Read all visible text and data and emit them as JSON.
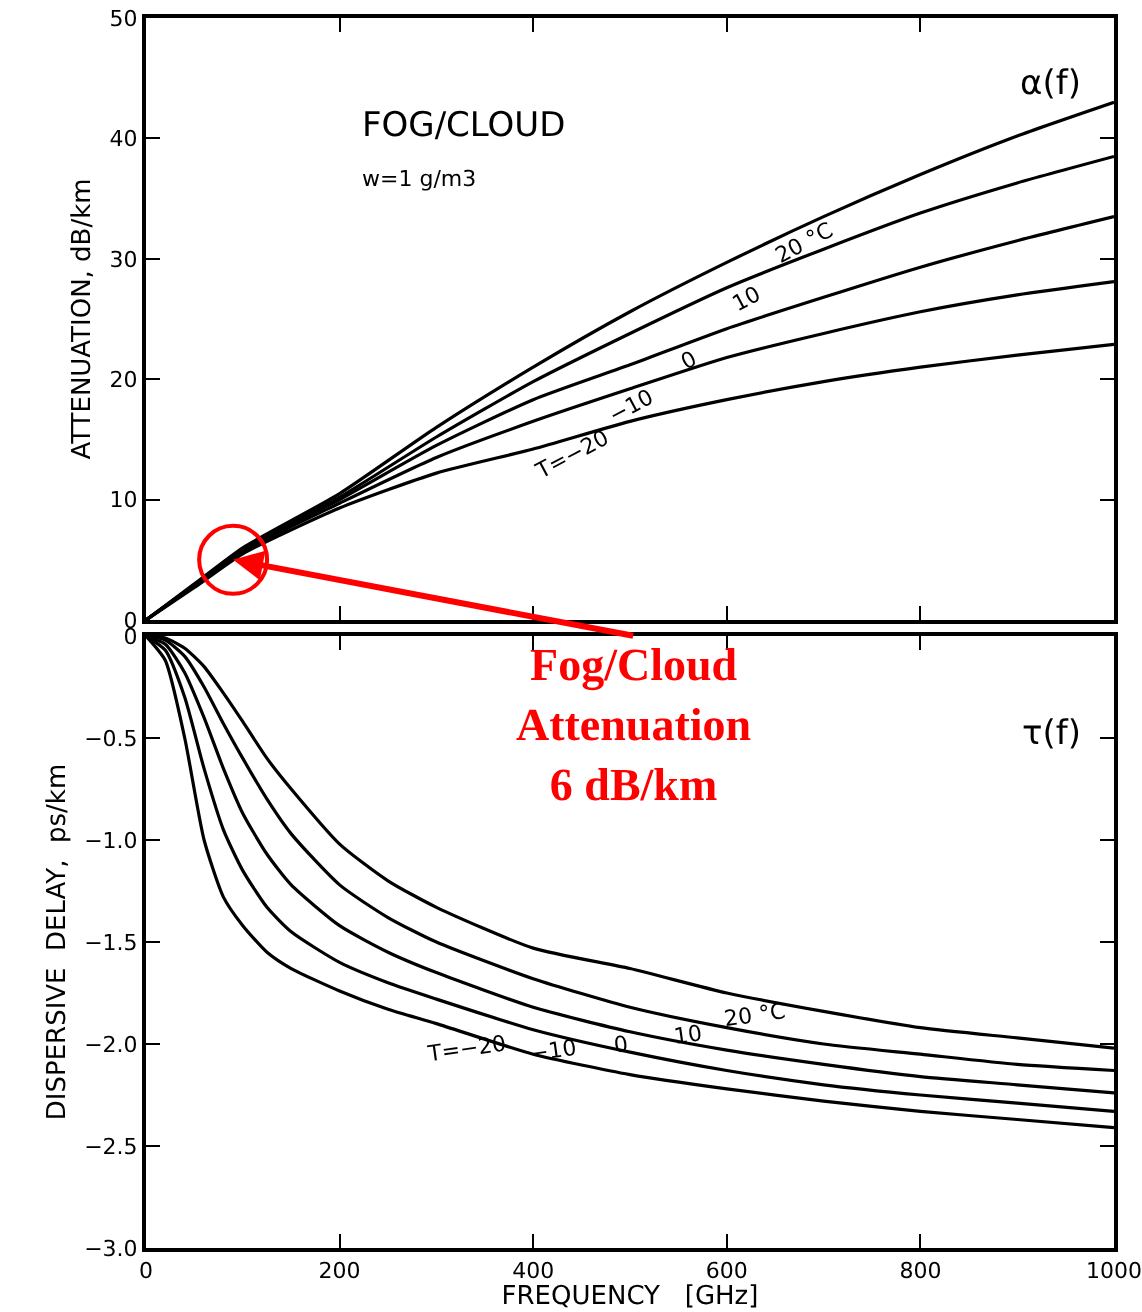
{
  "chart_data": [
    {
      "type": "line",
      "ylabel": "ATTENUATION, dB/km",
      "x": [
        0,
        50,
        100,
        200,
        300,
        400,
        500,
        600,
        700,
        800,
        900,
        1000
      ],
      "series": [
        {
          "name": "T=−20",
          "color": "#000000",
          "values": [
            0,
            2.7,
            5.5,
            9.3,
            12.2,
            14.2,
            16.5,
            18.3,
            19.8,
            21,
            22,
            22.9
          ]
        },
        {
          "name": "−10",
          "color": "#000000",
          "values": [
            0,
            2.8,
            5.7,
            9.7,
            13.5,
            16.5,
            19.2,
            21.8,
            23.8,
            25.6,
            27,
            28.1
          ]
        },
        {
          "name": "0",
          "color": "#000000",
          "values": [
            0,
            2.9,
            5.8,
            10,
            14.5,
            18.3,
            21.2,
            24.2,
            26.8,
            29.3,
            31.5,
            33.5
          ]
        },
        {
          "name": "10",
          "color": "#000000",
          "values": [
            0,
            2.9,
            5.9,
            10.2,
            15.2,
            19.8,
            23.8,
            27.6,
            30.8,
            33.8,
            36.3,
            38.5
          ]
        },
        {
          "name": "20 °C",
          "color": "#000000",
          "values": [
            0,
            3,
            6,
            10.5,
            16,
            21,
            25.6,
            29.7,
            33.5,
            37,
            40.2,
            43
          ]
        }
      ],
      "xlim": [
        0,
        1000
      ],
      "xticks": [
        0,
        200,
        400,
        600,
        800,
        1000
      ],
      "ylim": [
        0,
        50
      ],
      "yticks": [
        0,
        10,
        20,
        30,
        40,
        50
      ],
      "tick_labels": "y",
      "grid": false,
      "legend": false,
      "annotations": [
        "FOG/CLOUD",
        "w=1 g/m3",
        "α(f)",
        {
          "text": "Fog/Cloud\nAttenuation\n6 dB/km",
          "x": 90,
          "y": 5
        }
      ]
    },
    {
      "type": "line",
      "xlabel": "FREQUENCY   [GHz]",
      "ylabel": "DISPERSIVE  DELAY,  ps/km",
      "x": [
        0,
        20,
        40,
        60,
        80,
        100,
        125,
        150,
        200,
        250,
        300,
        400,
        500,
        600,
        700,
        800,
        900,
        1000
      ],
      "series": [
        {
          "name": "T=−20",
          "color": "#000000",
          "values": [
            0,
            -0.12,
            -0.5,
            -1.0,
            -1.28,
            -1.42,
            -1.55,
            -1.63,
            -1.74,
            -1.83,
            -1.9,
            -2.05,
            -2.15,
            -2.22,
            -2.28,
            -2.33,
            -2.37,
            -2.41
          ]
        },
        {
          "name": "−10",
          "color": "#000000",
          "values": [
            0,
            -0.07,
            -0.3,
            -0.65,
            -0.95,
            -1.15,
            -1.33,
            -1.45,
            -1.6,
            -1.7,
            -1.78,
            -1.93,
            -2.04,
            -2.13,
            -2.2,
            -2.25,
            -2.29,
            -2.33
          ]
        },
        {
          "name": "0",
          "color": "#000000",
          "values": [
            0,
            -0.04,
            -0.18,
            -0.4,
            -0.65,
            -0.87,
            -1.07,
            -1.22,
            -1.42,
            -1.55,
            -1.65,
            -1.82,
            -1.94,
            -2.03,
            -2.1,
            -2.16,
            -2.2,
            -2.24
          ]
        },
        {
          "name": "10",
          "color": "#000000",
          "values": [
            0,
            -0.02,
            -0.1,
            -0.25,
            -0.43,
            -0.6,
            -0.8,
            -0.97,
            -1.22,
            -1.38,
            -1.5,
            -1.68,
            -1.82,
            -1.92,
            -2.0,
            -2.05,
            -2.1,
            -2.13
          ]
        },
        {
          "name": "20 °C",
          "color": "#000000",
          "values": [
            0,
            -0.01,
            -0.06,
            -0.15,
            -0.28,
            -0.42,
            -0.6,
            -0.75,
            -1.02,
            -1.2,
            -1.33,
            -1.53,
            -1.63,
            -1.75,
            -1.84,
            -1.92,
            -1.97,
            -2.02
          ]
        }
      ],
      "xlim": [
        0,
        1000
      ],
      "xticks": [
        0,
        200,
        400,
        600,
        800,
        1000
      ],
      "ylim": [
        -3,
        0
      ],
      "yticks": [
        0,
        {
          "value": -0.5,
          "label": "−0.5"
        },
        {
          "value": -1,
          "label": "−1.0"
        },
        {
          "value": -1.5,
          "label": "−1.5"
        },
        {
          "value": -2,
          "label": "−2.0"
        },
        {
          "value": -2.5,
          "label": "−2.5"
        },
        {
          "value": -3,
          "label": "−3.0"
        }
      ],
      "grid": false,
      "legend": false,
      "annotations": [
        "τ(f)"
      ]
    }
  ]
}
